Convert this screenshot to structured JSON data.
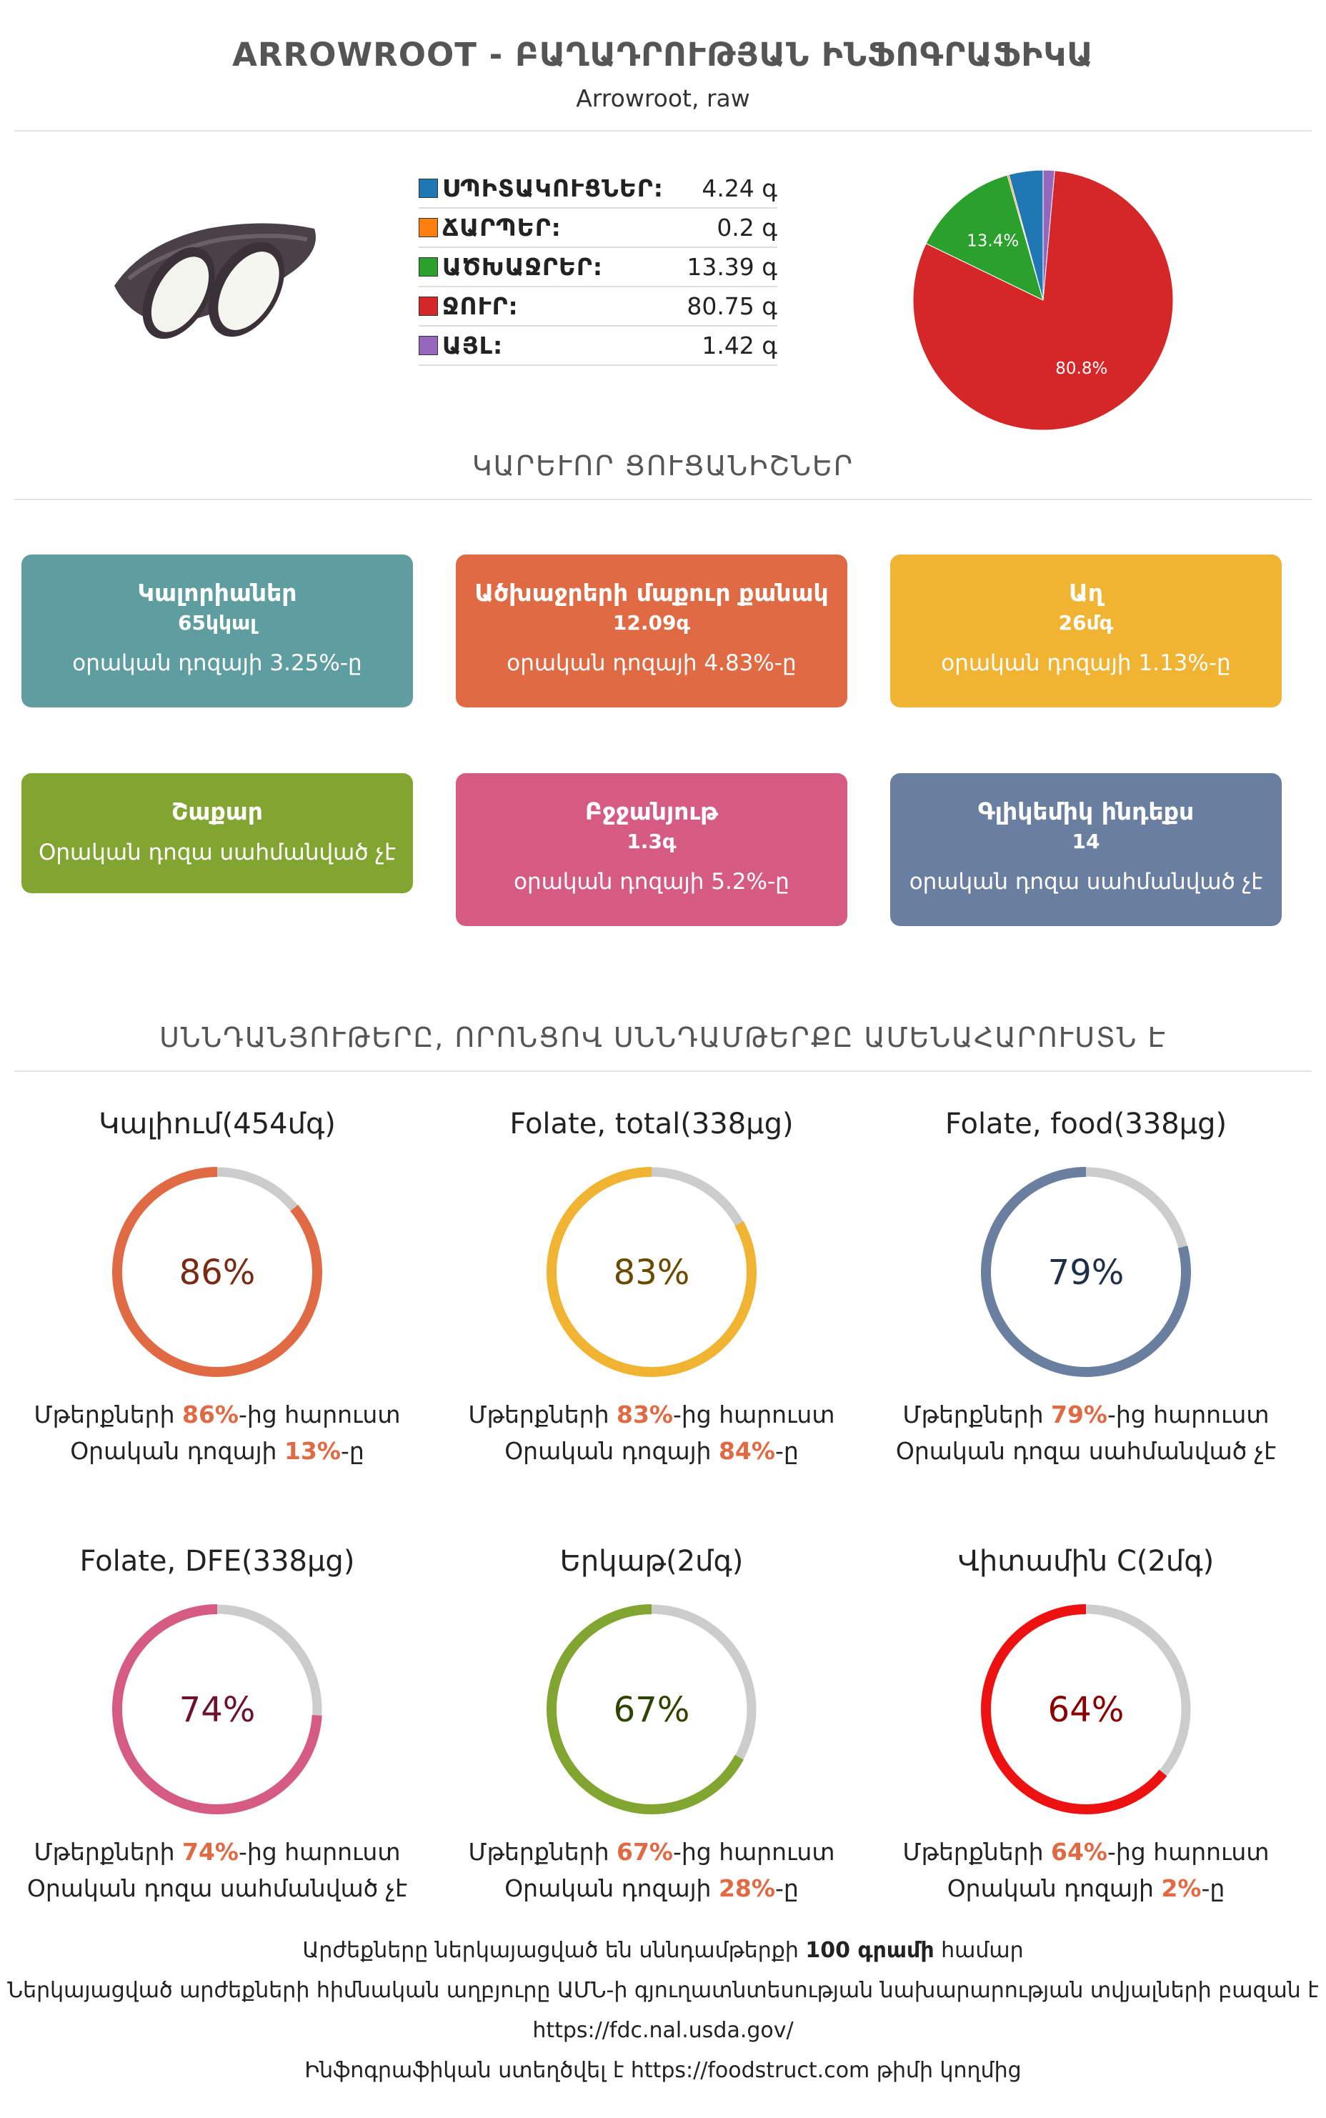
{
  "header": {
    "title": "ARROWROOT - ԲԱՂԱԴՐՈՒԹՅԱՆ ԻՆՖՈԳՐԱՖԻԿԱ",
    "subtitle": "Arrowroot, raw"
  },
  "macros": [
    {
      "name": "ՍՊԻՏԱԿՈՒՑՆԵՐ:",
      "value": "4.24 գ",
      "color": "#1f77b4"
    },
    {
      "name": "ՃԱՐՊԵՐ:",
      "value": "0.2 գ",
      "color": "#ff7f0e"
    },
    {
      "name": "ԱԾԽԱՋՐԵՐ:",
      "value": "13.39 գ",
      "color": "#2ca02c"
    },
    {
      "name": "ՋՈՒՐ:",
      "value": "80.75 գ",
      "color": "#d62728"
    },
    {
      "name": "ԱՅԼ:",
      "value": "1.42 գ",
      "color": "#9467bd"
    }
  ],
  "chart_data": {
    "type": "pie",
    "categories": [
      "ՍՊԻՏԱԿՈՒՑՆԵՐ",
      "ՃԱՐՊԵՐ",
      "ԱԾԽԱՋՐԵՐ",
      "ՋՈՒՐ",
      "ԱՅԼ"
    ],
    "values": [
      4.24,
      0.2,
      13.39,
      80.75,
      1.42
    ],
    "colors": [
      "#1f77b4",
      "#ff7f0e",
      "#2ca02c",
      "#d62728",
      "#9467bd"
    ],
    "slice_labels": [
      "",
      "",
      "13.4%",
      "80.8%",
      ""
    ]
  },
  "sections": {
    "key_indicators": "ԿԱՐԵՒՈՐ ՑՈՒՑԱՆԻՇՆԵՐ",
    "rich_nutrients": "ՍՆՆԴԱՆՅՈՒԹԵՐԸ, ՈՐՈՆՑՈՎ ՍՆՆԴԱՄԹԵՐՔԸ ԱՄԵՆԱՀԱՐՈՒՍՏՆ Է"
  },
  "cards": [
    {
      "title": "Կալորիաներ",
      "value": "65կկալ",
      "note": "օրական դոզայի 3.25%-ը",
      "color": "#5f9ea0"
    },
    {
      "title": "Ածխաջրերի մաքուր քանակ",
      "value": "12.09գ",
      "note": "օրական դոզայի 4.83%-ը",
      "color": "#e06a44"
    },
    {
      "title": "Աղ",
      "value": "26մգ",
      "note": "օրական դոզայի 1.13%-ը",
      "color": "#f0b432"
    },
    {
      "title": "Շաքար",
      "value": "",
      "note": "Օրական դոզա սահմանված չէ",
      "color": "#82a532"
    },
    {
      "title": "Բջջանյութ",
      "value": "1.3գ",
      "note": "օրական դոզայի 5.2%-ը",
      "color": "#d65b82"
    },
    {
      "title": "Գլիկեմիկ ինդեքս",
      "value": "14",
      "note": "օրական դոզա սահմանված չէ",
      "color": "#6a7fa0"
    }
  ],
  "nutrients": [
    {
      "title": "Կալիում(454մգ)",
      "percent": 86,
      "label": "86%",
      "color": "#e06a44",
      "text_color": "#7a2a12",
      "line1_pre": "Մթերքների ",
      "line1_hl": "86%",
      "line1_post": "-ից հարուստ",
      "line2_pre": "Օրական դոզայի ",
      "line2_hl": "13%",
      "line2_post": "-ը"
    },
    {
      "title": "Folate, total(338µg)",
      "percent": 83,
      "label": "83%",
      "color": "#f0b432",
      "text_color": "#6b4a00",
      "line1_pre": "Մթերքների ",
      "line1_hl": "83%",
      "line1_post": "-ից հարուստ",
      "line2_pre": "Օրական դոզայի ",
      "line2_hl": "84%",
      "line2_post": "-ը"
    },
    {
      "title": "Folate, food(338µg)",
      "percent": 79,
      "label": "79%",
      "color": "#6a7fa0",
      "text_color": "#1f2f48",
      "line1_pre": "Մթերքների ",
      "line1_hl": "79%",
      "line1_post": "-ից հարուստ",
      "line2_pre": "Օրական դոզա սահմանված չէ",
      "line2_hl": "",
      "line2_post": ""
    },
    {
      "title": "Folate, DFE(338µg)",
      "percent": 74,
      "label": "74%",
      "color": "#d65b82",
      "text_color": "#6e1030",
      "line1_pre": "Մթերքների ",
      "line1_hl": "74%",
      "line1_post": "-ից հարուստ",
      "line2_pre": "Օրական դոզա սահմանված չէ",
      "line2_hl": "",
      "line2_post": ""
    },
    {
      "title": "Երկաթ(2մգ)",
      "percent": 67,
      "label": "67%",
      "color": "#82a532",
      "text_color": "#2e4400",
      "line1_pre": "Մթերքների ",
      "line1_hl": "67%",
      "line1_post": "-ից հարուստ",
      "line2_pre": "Օրական դոզայի ",
      "line2_hl": "28%",
      "line2_post": "-ը"
    },
    {
      "title": "Վիտամին C(2մգ)",
      "percent": 64,
      "label": "64%",
      "color": "#ee1111",
      "text_color": "#8a0000",
      "line1_pre": "Մթերքների ",
      "line1_hl": "64%",
      "line1_post": "-ից հարուստ",
      "line2_pre": "Օրական դոզայի ",
      "line2_hl": "2%",
      "line2_post": "-ը"
    }
  ],
  "footer": {
    "line1_pre": "Արժեքները ներկայացված են սննդամթերքի ",
    "line1_bold": "100 գրամի",
    "line1_post": " համար",
    "line2": "Ներկայացված արժեքների հիմնական աղբյուրը ԱՄՆ-ի գյուղատնտեսության նախարարության տվյալների բազան է",
    "line3": "https://fdc.nal.usda.gov/",
    "line4": "Ինֆոգրաֆիկան ստեղծվել է https://foodstruct.com թիմի կողմից"
  }
}
